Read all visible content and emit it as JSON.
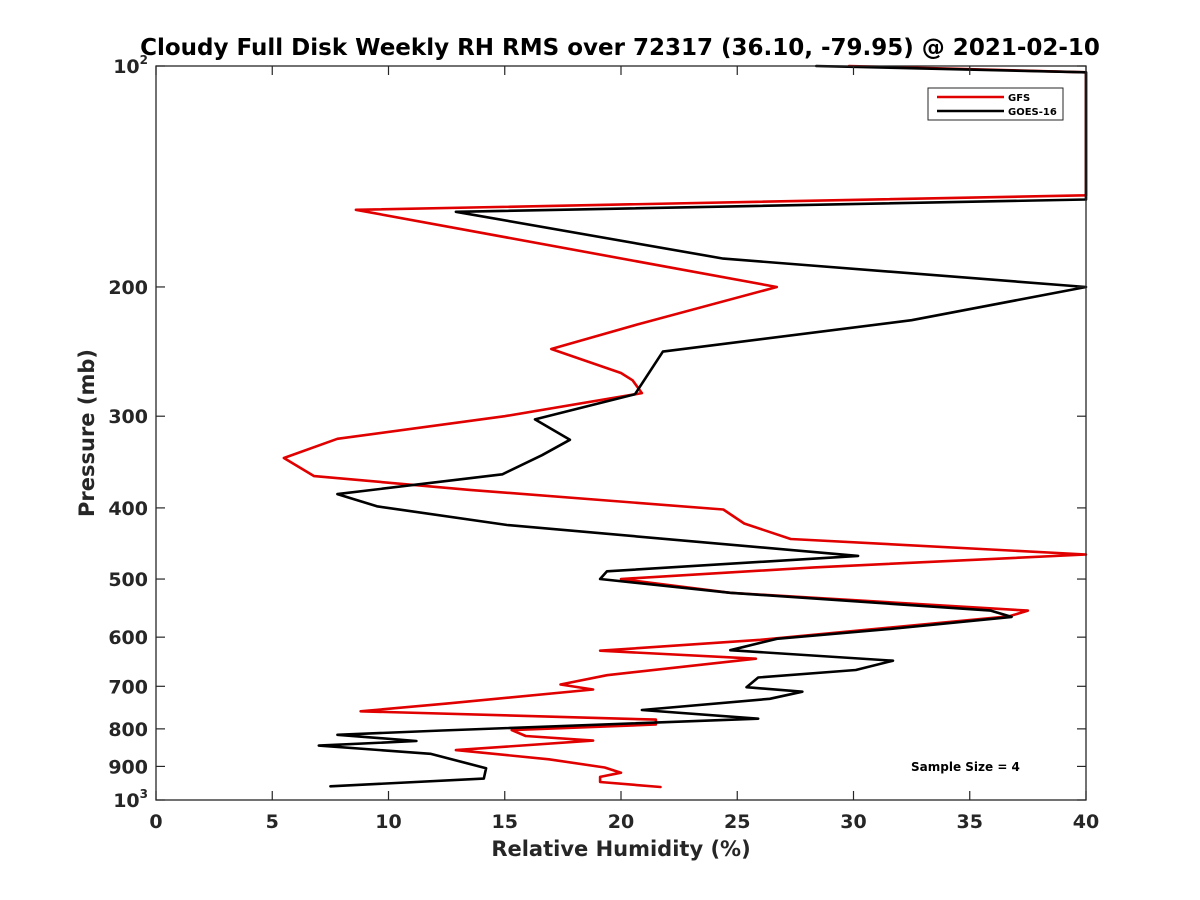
{
  "chart_data": {
    "type": "line",
    "title": "Cloudy Full Disk Weekly RH RMS over 72317 (36.10, -79.95) @ 2021-02-10",
    "xlabel": "Relative Humidity (%)",
    "ylabel": "Pressure (mb)",
    "xlim": [
      0,
      40
    ],
    "ylim": [
      100,
      1000
    ],
    "y_scale": "log",
    "y_reversed": true,
    "x_ticks": [
      "0",
      "5",
      "10",
      "15",
      "20",
      "25",
      "30",
      "35",
      "40"
    ],
    "y_ticks": [
      {
        "value": 100,
        "label": "10",
        "sup": "2"
      },
      {
        "value": 200,
        "label": "200",
        "sup": ""
      },
      {
        "value": 300,
        "label": "300",
        "sup": ""
      },
      {
        "value": 400,
        "label": "400",
        "sup": ""
      },
      {
        "value": 500,
        "label": "500",
        "sup": ""
      },
      {
        "value": 600,
        "label": "600",
        "sup": ""
      },
      {
        "value": 700,
        "label": "700",
        "sup": ""
      },
      {
        "value": 800,
        "label": "800",
        "sup": ""
      },
      {
        "value": 900,
        "label": "900",
        "sup": ""
      },
      {
        "value": 1000,
        "label": "10",
        "sup": "3"
      }
    ],
    "legend_position": "top-right",
    "annotation": "Sample Size = 4",
    "series": [
      {
        "name": "GFS",
        "color": "#e00000",
        "points": [
          [
            29.8,
            100
          ],
          [
            40,
            102
          ],
          [
            40,
            150
          ],
          [
            8.6,
            157
          ],
          [
            26.7,
            200
          ],
          [
            20.7,
            225
          ],
          [
            17,
            243
          ],
          [
            20,
            262
          ],
          [
            20.5,
            268
          ],
          [
            20.9,
            279
          ],
          [
            15,
            300
          ],
          [
            7.8,
            322
          ],
          [
            5.5,
            342
          ],
          [
            6.8,
            362
          ],
          [
            13.5,
            378
          ],
          [
            24.4,
            402
          ],
          [
            25.3,
            420
          ],
          [
            27.3,
            441
          ],
          [
            40,
            463
          ],
          [
            28.3,
            482
          ],
          [
            20,
            500
          ],
          [
            24.7,
            522
          ],
          [
            37.5,
            552
          ],
          [
            36.7,
            562
          ],
          [
            26,
            605
          ],
          [
            19.1,
            626
          ],
          [
            25.8,
            642
          ],
          [
            19.4,
            676
          ],
          [
            17.4,
            696
          ],
          [
            18.8,
            707
          ],
          [
            12.5,
            739
          ],
          [
            8.8,
            757
          ],
          [
            21.5,
            777
          ],
          [
            21.5,
            789
          ],
          [
            15.3,
            803
          ],
          [
            15.9,
            818
          ],
          [
            18.8,
            830
          ],
          [
            12.9,
            855
          ],
          [
            16.9,
            880
          ],
          [
            19.3,
            903
          ],
          [
            20,
            918
          ],
          [
            19.1,
            930
          ],
          [
            19.1,
            945
          ],
          [
            21.7,
            960
          ]
        ]
      },
      {
        "name": "GOES-16",
        "color": "#000000",
        "points": [
          [
            28.4,
            100
          ],
          [
            40,
            102
          ],
          [
            40,
            152
          ],
          [
            12.9,
            158
          ],
          [
            24.4,
            183
          ],
          [
            40,
            200
          ],
          [
            32.5,
            222
          ],
          [
            21.8,
            245
          ],
          [
            20.6,
            280
          ],
          [
            16.3,
            303
          ],
          [
            17.8,
            323
          ],
          [
            16.6,
            339
          ],
          [
            14.9,
            360
          ],
          [
            7.8,
            383
          ],
          [
            9.5,
            398
          ],
          [
            15.1,
            422
          ],
          [
            30.2,
            465
          ],
          [
            19.4,
            488
          ],
          [
            19.1,
            500
          ],
          [
            24.7,
            522
          ],
          [
            35.9,
            552
          ],
          [
            36.8,
            563
          ],
          [
            31.5,
            585
          ],
          [
            26.7,
            603
          ],
          [
            24.7,
            625
          ],
          [
            31.7,
            646
          ],
          [
            30.1,
            665
          ],
          [
            25.9,
            681
          ],
          [
            25.4,
            702
          ],
          [
            27.8,
            712
          ],
          [
            26.4,
            728
          ],
          [
            20.9,
            754
          ],
          [
            25.9,
            775
          ],
          [
            12.3,
            804
          ],
          [
            7.8,
            815
          ],
          [
            11.2,
            831
          ],
          [
            7,
            843
          ],
          [
            11.8,
            865
          ],
          [
            14.2,
            905
          ],
          [
            14.1,
            935
          ],
          [
            7.5,
            958
          ]
        ]
      }
    ]
  }
}
